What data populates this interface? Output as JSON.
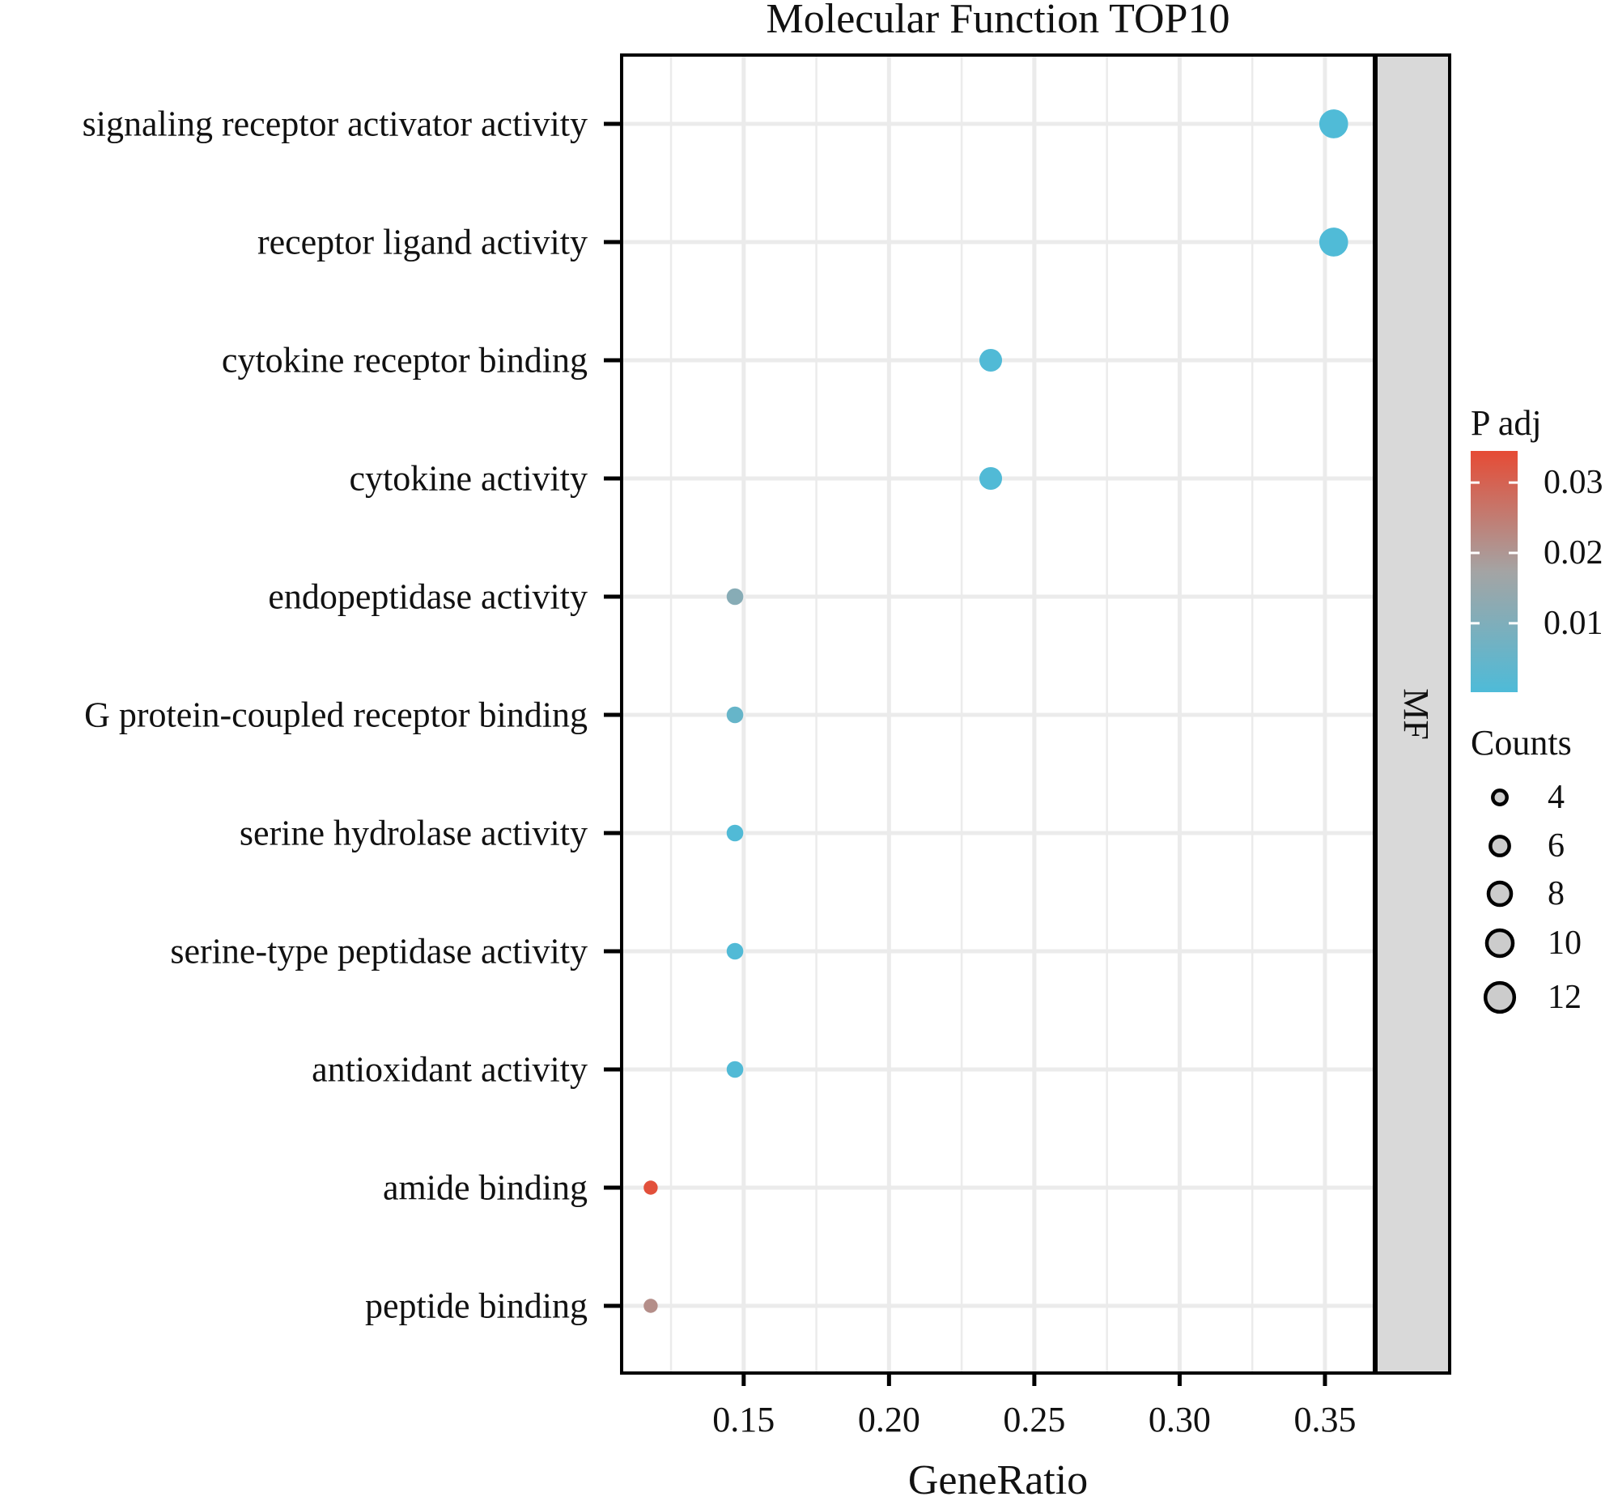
{
  "chart_data": {
    "type": "scatter",
    "title": "Molecular Function TOP10",
    "xlabel": "GeneRatio",
    "ylabel": "",
    "xlim": [
      0.108,
      0.367
    ],
    "x_ticks": [
      {
        "value": 0.15,
        "label": "0.15"
      },
      {
        "value": 0.2,
        "label": "0.20"
      },
      {
        "value": 0.25,
        "label": "0.25"
      },
      {
        "value": 0.3,
        "label": "0.30"
      },
      {
        "value": 0.35,
        "label": "0.35"
      }
    ],
    "facet_label": "MF",
    "grid": true,
    "categories": [
      "signaling receptor activator activity",
      "receptor ligand activity",
      "cytokine receptor binding",
      "cytokine activity",
      "endopeptidase activity",
      "G protein-coupled receptor binding",
      "serine hydrolase activity",
      "serine-type peptidase activity",
      "antioxidant activity",
      "amide binding",
      "peptide binding"
    ],
    "points": [
      {
        "term": "signaling receptor activator activity",
        "gene_ratio": 0.353,
        "count": 12,
        "p_adj": 0.0005
      },
      {
        "term": "receptor ligand activity",
        "gene_ratio": 0.353,
        "count": 12,
        "p_adj": 0.0005
      },
      {
        "term": "cytokine receptor binding",
        "gene_ratio": 0.235,
        "count": 8,
        "p_adj": 0.0008
      },
      {
        "term": "cytokine activity",
        "gene_ratio": 0.235,
        "count": 8,
        "p_adj": 0.0008
      },
      {
        "term": "endopeptidase activity",
        "gene_ratio": 0.147,
        "count": 5,
        "p_adj": 0.0115
      },
      {
        "term": "G protein-coupled receptor binding",
        "gene_ratio": 0.147,
        "count": 5,
        "p_adj": 0.005
      },
      {
        "term": "serine hydrolase activity",
        "gene_ratio": 0.147,
        "count": 5,
        "p_adj": 0.0008
      },
      {
        "term": "serine-type peptidase activity",
        "gene_ratio": 0.147,
        "count": 5,
        "p_adj": 0.0008
      },
      {
        "term": "antioxidant activity",
        "gene_ratio": 0.147,
        "count": 5,
        "p_adj": 0.0008
      },
      {
        "term": "amide binding",
        "gene_ratio": 0.118,
        "count": 4,
        "p_adj": 0.0335
      },
      {
        "term": "peptide binding",
        "gene_ratio": 0.118,
        "count": 4,
        "p_adj": 0.0215
      }
    ],
    "color_legend": {
      "title": "P adj",
      "min": 0.0002,
      "max": 0.0345,
      "low_color": "#4ebbd8",
      "mid_color": "#a4a4a4",
      "high_color": "#e64b35",
      "ticks": [
        {
          "value": 0.03,
          "label": "0.03"
        },
        {
          "value": 0.02,
          "label": "0.02"
        },
        {
          "value": 0.01,
          "label": "0.01"
        }
      ]
    },
    "size_legend": {
      "title": "Counts",
      "entries": [
        {
          "value": 4,
          "label": "4"
        },
        {
          "value": 6,
          "label": "6"
        },
        {
          "value": 8,
          "label": "8"
        },
        {
          "value": 10,
          "label": "10"
        },
        {
          "value": 12,
          "label": "12"
        }
      ]
    },
    "colors": {
      "grid": "#ebebeb",
      "panel_border": "#000000",
      "strip_fill": "#d9d9d9",
      "legend_circle_fill": "#cccccc"
    }
  }
}
